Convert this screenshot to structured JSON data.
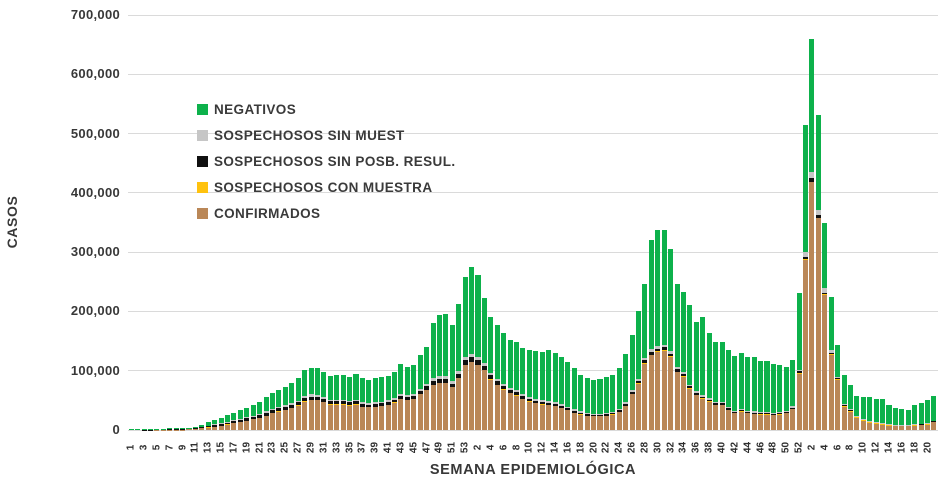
{
  "axes": {
    "y_title": "CASOS",
    "x_title": "SEMANA EPIDEMIOLÓGICA",
    "y_tick_labels": [
      "0",
      "100,000",
      "200,000",
      "300,000",
      "400,000",
      "500,000",
      "600,000",
      "700,000"
    ],
    "y_max": 700000,
    "grid": "horizontal"
  },
  "legend": [
    {
      "label": "NEGATIVOS",
      "color": "#0db14b"
    },
    {
      "label": "SOSPECHOSOS SIN MUEST",
      "color": "#c6c6c6"
    },
    {
      "label": "SOSPECHOSOS SIN POSB. RESUL.",
      "color": "#101010"
    },
    {
      "label": "SOSPECHOSOS CON MUESTRA",
      "color": "#ffc20e"
    },
    {
      "label": "CONFIRMADOS",
      "color": "#ba8757"
    }
  ],
  "chart_data": {
    "type": "bar",
    "stacked": true,
    "title": "",
    "xlabel": "SEMANA EPIDEMIOLÓGICA",
    "ylabel": "CASOS",
    "ylim": [
      0,
      700000
    ],
    "x_note": "epidemiological weeks, three consecutive years (53 + 52 + 21 weeks); tick label shown under every other bar",
    "weeks": [
      1,
      2,
      3,
      4,
      5,
      6,
      7,
      8,
      9,
      10,
      11,
      12,
      13,
      14,
      15,
      16,
      17,
      18,
      19,
      20,
      21,
      22,
      23,
      24,
      25,
      26,
      27,
      28,
      29,
      30,
      31,
      32,
      33,
      34,
      35,
      36,
      37,
      38,
      39,
      40,
      41,
      42,
      43,
      44,
      45,
      46,
      47,
      48,
      49,
      50,
      51,
      52,
      53,
      1,
      2,
      3,
      4,
      5,
      6,
      7,
      8,
      9,
      10,
      11,
      12,
      13,
      14,
      15,
      16,
      17,
      18,
      19,
      20,
      21,
      22,
      23,
      24,
      25,
      26,
      27,
      28,
      29,
      30,
      31,
      32,
      33,
      34,
      35,
      36,
      37,
      38,
      39,
      40,
      41,
      42,
      43,
      44,
      45,
      46,
      47,
      48,
      49,
      50,
      51,
      52,
      1,
      2,
      3,
      4,
      5,
      6,
      7,
      8,
      9,
      10,
      11,
      12,
      13,
      14,
      15,
      16,
      17,
      18,
      19,
      20,
      21
    ],
    "series": [
      {
        "name": "CONFIRMADOS",
        "color": "#ba8757",
        "values": [
          0,
          0,
          0,
          0,
          200,
          300,
          400,
          500,
          700,
          1000,
          2000,
          3000,
          4000,
          5500,
          7000,
          9000,
          11000,
          13000,
          15000,
          18000,
          20000,
          24000,
          28000,
          31000,
          33000,
          37000,
          41000,
          48000,
          50000,
          50000,
          47000,
          43000,
          43000,
          43000,
          41000,
          43000,
          39000,
          38000,
          39000,
          40000,
          42000,
          46000,
          52000,
          50000,
          52000,
          60000,
          67000,
          76000,
          79000,
          79000,
          72000,
          87000,
          110000,
          114000,
          110000,
          101000,
          85000,
          76000,
          68000,
          62000,
          58000,
          52000,
          48000,
          45000,
          43000,
          42000,
          40000,
          37000,
          33000,
          29000,
          26000,
          24000,
          23000,
          23000,
          24000,
          26000,
          30000,
          40000,
          60000,
          78000,
          112000,
          126000,
          132000,
          134000,
          124000,
          98000,
          90000,
          70000,
          59000,
          53000,
          48000,
          42000,
          42000,
          34000,
          28000,
          31000,
          28000,
          27000,
          26000,
          26000,
          25000,
          26000,
          28000,
          35000,
          95000,
          287000,
          418000,
          357000,
          228000,
          127000,
          84000,
          39000,
          31000,
          20000,
          15000,
          12000,
          10000,
          9000,
          7000,
          6000,
          6000,
          6000,
          7000,
          8000,
          9000,
          13000
        ]
      },
      {
        "name": "SOSPECHOSOS CON MUESTRA",
        "color": "#ffc20e",
        "values": [
          0,
          0,
          0,
          0,
          100,
          100,
          100,
          100,
          100,
          100,
          300,
          300,
          400,
          400,
          500,
          500,
          500,
          500,
          500,
          500,
          500,
          500,
          500,
          500,
          500,
          500,
          500,
          500,
          500,
          500,
          500,
          500,
          500,
          500,
          500,
          500,
          500,
          500,
          500,
          500,
          500,
          500,
          500,
          500,
          500,
          500,
          500,
          500,
          500,
          500,
          500,
          500,
          500,
          500,
          500,
          500,
          500,
          500,
          500,
          500,
          500,
          500,
          400,
          400,
          400,
          400,
          400,
          400,
          400,
          400,
          400,
          400,
          400,
          400,
          400,
          400,
          400,
          500,
          500,
          500,
          500,
          500,
          500,
          500,
          500,
          500,
          500,
          500,
          500,
          500,
          500,
          500,
          500,
          500,
          500,
          500,
          500,
          500,
          500,
          500,
          500,
          500,
          500,
          500,
          1000,
          1000,
          1000,
          1000,
          1000,
          1500,
          1500,
          1500,
          1500,
          1500,
          1500,
          1500,
          1200,
          1200,
          1000,
          1000,
          1000,
          1000,
          1000,
          1000,
          1000,
          1200
        ]
      },
      {
        "name": "SOSPECHOSOS SIN POSB. RESUL.",
        "color": "#101010",
        "values": [
          100,
          100,
          200,
          200,
          300,
          300,
          400,
          400,
          500,
          500,
          1000,
          1500,
          2000,
          2500,
          3000,
          3000,
          3500,
          3500,
          4000,
          4000,
          4500,
          4500,
          5000,
          5000,
          5000,
          5000,
          5000,
          6000,
          6000,
          5500,
          5000,
          5000,
          5000,
          5000,
          5000,
          5000,
          4500,
          4500,
          4500,
          4500,
          4500,
          5000,
          5000,
          5000,
          5000,
          5500,
          6000,
          6000,
          6500,
          6500,
          6000,
          7000,
          8000,
          8000,
          8000,
          7000,
          6500,
          6000,
          5500,
          5000,
          5000,
          4500,
          4500,
          4000,
          4000,
          4000,
          4000,
          3500,
          3500,
          3000,
          3000,
          3000,
          2500,
          2500,
          2500,
          2500,
          3000,
          3500,
          4000,
          4500,
          5000,
          5000,
          5000,
          5000,
          4500,
          4000,
          3500,
          3000,
          3000,
          2500,
          2500,
          2500,
          2500,
          2000,
          2000,
          2000,
          2000,
          2000,
          2000,
          2000,
          2000,
          2000,
          2000,
          2500,
          3000,
          4000,
          6000,
          4000,
          3000,
          2000,
          1500,
          1000,
          1000,
          1000,
          800,
          800,
          800,
          800,
          600,
          600,
          600,
          600,
          600,
          700,
          700,
          800
        ]
      },
      {
        "name": "SOSPECHOSOS SIN MUEST",
        "color": "#c6c6c6",
        "values": [
          100,
          100,
          100,
          200,
          200,
          200,
          300,
          300,
          400,
          500,
          500,
          500,
          1000,
          1000,
          1500,
          1500,
          1500,
          2000,
          2000,
          2000,
          2000,
          2500,
          2500,
          2500,
          3000,
          3000,
          3000,
          3000,
          3500,
          3500,
          3000,
          3000,
          3000,
          3000,
          3000,
          3000,
          3000,
          3000,
          3000,
          3000,
          3000,
          3000,
          3500,
          3500,
          3500,
          4000,
          4000,
          4500,
          4500,
          4500,
          4000,
          5000,
          5500,
          6000,
          5500,
          5000,
          4500,
          4000,
          4000,
          3500,
          3500,
          3000,
          3000,
          3000,
          3000,
          3000,
          3000,
          2500,
          2500,
          2500,
          2000,
          2000,
          2000,
          2000,
          2000,
          2000,
          2500,
          2500,
          3000,
          3500,
          4000,
          4500,
          4500,
          4500,
          4000,
          3500,
          3500,
          3000,
          3000,
          2500,
          2500,
          2500,
          2500,
          2000,
          2000,
          2000,
          2000,
          2000,
          2000,
          2000,
          2000,
          2000,
          2000,
          2500,
          3000,
          8000,
          10000,
          10000,
          7000,
          4000,
          3000,
          2000,
          1500,
          1000,
          1000,
          1000,
          1000,
          1000,
          800,
          800,
          800,
          800,
          800,
          800,
          800,
          1000
        ]
      },
      {
        "name": "NEGATIVOS",
        "color": "#0db14b",
        "values": [
          1300,
          1300,
          1700,
          1600,
          1700,
          1600,
          1800,
          1700,
          1800,
          1900,
          2200,
          3700,
          5600,
          7600,
          9000,
          11000,
          12500,
          14000,
          16500,
          18500,
          21000,
          23500,
          26000,
          29000,
          30500,
          33500,
          37500,
          43500,
          45000,
          44500,
          42500,
          39500,
          41500,
          41500,
          40500,
          43500,
          41000,
          39000,
          41000,
          41000,
          41000,
          43500,
          51000,
          48000,
          49000,
          56000,
          62500,
          93000,
          103500,
          104500,
          94500,
          113500,
          134000,
          146500,
          138000,
          109500,
          94500,
          90500,
          85000,
          81000,
          81000,
          78000,
          79100,
          80600,
          80600,
          85600,
          82600,
          80600,
          75600,
          69100,
          61600,
          57600,
          56100,
          58100,
          60100,
          62100,
          68100,
          82500,
          92500,
          113500,
          124500,
          184000,
          195000,
          193000,
          173000,
          141000,
          135500,
          134500,
          117500,
          131500,
          109500,
          100500,
          100500,
          96500,
          92500,
          94500,
          90500,
          92500,
          85500,
          86500,
          81500,
          78500,
          73500,
          78500,
          130000,
          215000,
          225000,
          159000,
          111000,
          90500,
          53000,
          49500,
          41000,
          33500,
          36700,
          39700,
          40000,
          41000,
          32600,
          28600,
          26600,
          24600,
          32600,
          35500,
          38500,
          41000
        ]
      }
    ]
  }
}
